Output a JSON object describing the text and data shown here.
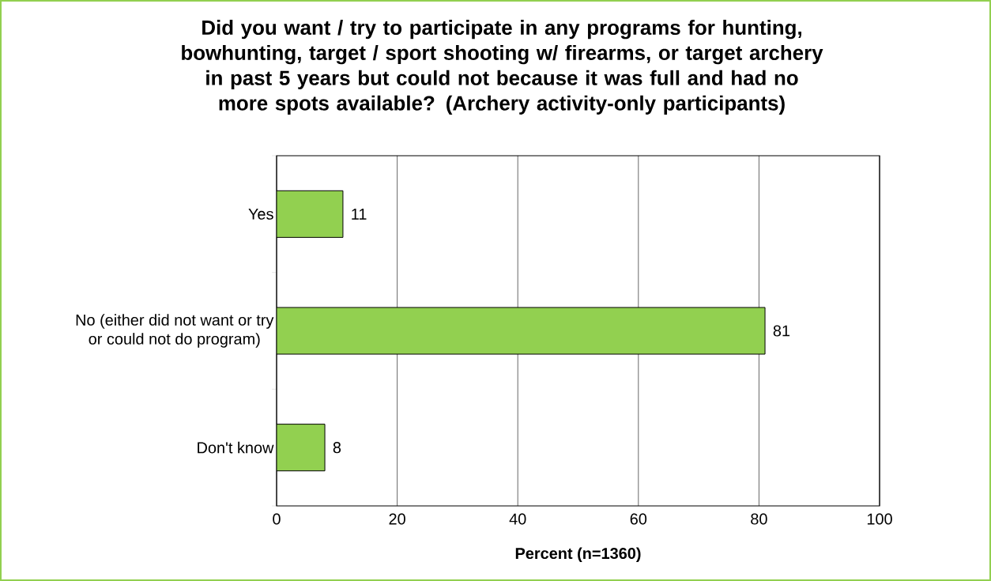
{
  "chart_data": {
    "type": "bar",
    "orientation": "horizontal",
    "title": "Did you want / try to participate in any programs for hunting, bowhunting, target / sport shooting w/ firearms, or target archery in past 5 years but could not because it was full and had no more spots available? (Archery activity-only participants)",
    "xlabel": "Percent (n=1360)",
    "categories": [
      "Yes",
      "No (either did not want or try or could not do program)",
      "Don't know"
    ],
    "values": [
      11,
      81,
      8
    ],
    "color": "#92d050",
    "xlim": [
      0,
      100
    ],
    "xticks": [
      0,
      20,
      40,
      60,
      80,
      100
    ],
    "grid": "x",
    "data_labels": true
  }
}
